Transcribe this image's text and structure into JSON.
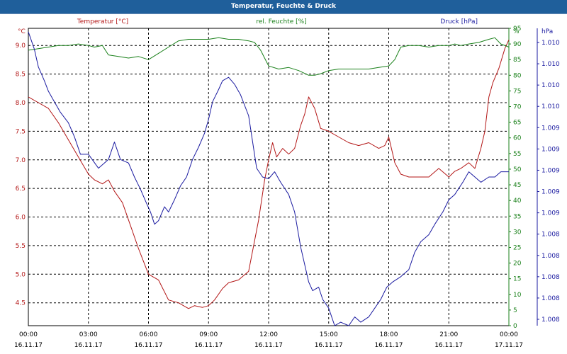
{
  "title": "Temperatur, Feuchte & Druck",
  "colors": {
    "temperature": "#b31616",
    "humidity": "#1a801a",
    "pressure": "#1a1aa0",
    "title_bar": "#1f5f9b",
    "grid": "#000000"
  },
  "chart_data": {
    "type": "line",
    "title": "Temperatur, Feuchte & Druck",
    "x_ticks": [
      {
        "time": "00:00",
        "date": "16.11.17"
      },
      {
        "time": "03:00",
        "date": "16.11.17"
      },
      {
        "time": "06:00",
        "date": "16.11.17"
      },
      {
        "time": "09:00",
        "date": "16.11.17"
      },
      {
        "time": "12:00",
        "date": "16.11.17"
      },
      {
        "time": "15:00",
        "date": "16.11.17"
      },
      {
        "time": "18:00",
        "date": "16.11.17"
      },
      {
        "time": "21:00",
        "date": "16.11.17"
      },
      {
        "time": "00:00",
        "date": "17.11.17"
      }
    ],
    "x_range_hours": [
      0,
      24
    ],
    "grid": true,
    "axes": {
      "temperature": {
        "label": "Temperatur [°C]",
        "unit": "°C",
        "range": [
          4.1,
          9.3
        ],
        "ticks": [
          "9.0",
          "8.5",
          "8.0",
          "7.5",
          "7.0",
          "6.5",
          "6.0",
          "5.5",
          "5.0",
          "4.5"
        ]
      },
      "humidity": {
        "label": "rel. Feuchte [%]",
        "unit": "%",
        "range": [
          0,
          95
        ],
        "ticks": [
          "95",
          "90",
          "85",
          "80",
          "75",
          "70",
          "65",
          "60",
          "55",
          "50",
          "45",
          "40",
          "35",
          "30",
          "25",
          "20",
          "15",
          "10",
          "5",
          "0"
        ]
      },
      "pressure": {
        "label": "Druck [hPa]",
        "unit": "hPa",
        "range": [
          1008.4,
          1010.1
        ],
        "ticks": [
          "1.010",
          "1.010",
          "1.010",
          "1.010",
          "1.009",
          "1.009",
          "1.009",
          "1.009",
          "1.009",
          "1.008",
          "1.008",
          "1.008",
          "1.008",
          "1.008"
        ]
      }
    },
    "series": [
      {
        "name": "Temperatur [°C]",
        "axis": "temperature",
        "x": [
          0,
          0.5,
          1,
          1.5,
          2,
          2.5,
          3,
          3.3,
          3.7,
          4,
          4.3,
          4.7,
          5,
          5.5,
          6,
          6.5,
          7,
          7.5,
          8,
          8.3,
          8.7,
          9,
          9.3,
          9.7,
          10,
          10.5,
          11,
          11.5,
          11.8,
          12,
          12.2,
          12.4,
          12.7,
          13,
          13.3,
          13.6,
          13.8,
          14,
          14.3,
          14.6,
          15,
          15.5,
          16,
          16.5,
          17,
          17.5,
          17.8,
          18,
          18.3,
          18.6,
          19,
          19.5,
          20,
          20.5,
          21,
          21.3,
          21.6,
          22,
          22.3,
          22.6,
          22.8,
          23,
          23.2,
          23.5,
          23.8,
          24
        ],
        "values": [
          8.1,
          8.0,
          7.9,
          7.65,
          7.35,
          7.05,
          6.75,
          6.65,
          6.58,
          6.65,
          6.45,
          6.25,
          5.95,
          5.45,
          5.0,
          4.9,
          4.55,
          4.5,
          4.4,
          4.45,
          4.42,
          4.45,
          4.55,
          4.75,
          4.85,
          4.9,
          5.05,
          5.95,
          6.65,
          7.0,
          7.3,
          7.05,
          7.2,
          7.1,
          7.2,
          7.6,
          7.8,
          8.1,
          7.9,
          7.55,
          7.5,
          7.4,
          7.3,
          7.25,
          7.3,
          7.2,
          7.25,
          7.4,
          6.95,
          6.75,
          6.7,
          6.7,
          6.7,
          6.85,
          6.7,
          6.8,
          6.85,
          6.95,
          6.85,
          7.2,
          7.5,
          8.1,
          8.35,
          8.6,
          8.95,
          9.1
        ]
      },
      {
        "name": "rel. Feuchte [%]",
        "axis": "humidity",
        "x": [
          0,
          0.5,
          1,
          1.5,
          2,
          2.5,
          3,
          3.3,
          3.7,
          4,
          4.5,
          5,
          5.5,
          6,
          6.5,
          7,
          7.5,
          8,
          8.5,
          9,
          9.5,
          10,
          10.5,
          11,
          11.3,
          11.6,
          12,
          12.5,
          13,
          13.5,
          14,
          14.3,
          14.6,
          15,
          15.5,
          16,
          16.5,
          17,
          17.5,
          18,
          18.3,
          18.6,
          19,
          19.5,
          20,
          20.5,
          21,
          21.3,
          21.6,
          22,
          22.5,
          23,
          23.3,
          23.6,
          24
        ],
        "values": [
          88,
          88.5,
          89,
          89.5,
          89.5,
          90,
          89.5,
          89,
          89.5,
          86.5,
          86,
          85.5,
          86,
          85,
          87,
          89,
          91,
          91.5,
          91.5,
          91.5,
          92,
          91.5,
          91.5,
          91,
          90.5,
          88,
          83,
          82,
          82.5,
          81.5,
          80,
          80,
          80.5,
          81.5,
          82,
          82,
          82,
          82,
          82.5,
          83,
          85,
          89,
          89.5,
          89.5,
          89,
          89.5,
          89.5,
          90,
          89.5,
          90,
          90.5,
          91.5,
          92,
          90,
          89
        ]
      },
      {
        "name": "Druck [hPa]",
        "axis": "pressure",
        "x": [
          0,
          0.3,
          0.5,
          0.8,
          1,
          1.3,
          1.6,
          2,
          2.3,
          2.6,
          3,
          3.5,
          4,
          4.3,
          4.6,
          5,
          5.3,
          5.6,
          5.9,
          6.1,
          6.3,
          6.5,
          6.8,
          7,
          7.3,
          7.6,
          7.9,
          8.2,
          8.5,
          8.8,
          9,
          9.2,
          9.5,
          9.7,
          10,
          10.3,
          10.6,
          11,
          11.4,
          11.7,
          12,
          12.3,
          12.6,
          13,
          13.3,
          13.6,
          14,
          14.2,
          14.5,
          14.7,
          15,
          15.3,
          15.6,
          16,
          16.3,
          16.6,
          17,
          17.3,
          17.6,
          17.9,
          18.2,
          18.6,
          19,
          19.3,
          19.6,
          20,
          20.3,
          20.7,
          21,
          21.3,
          21.7,
          22,
          22.3,
          22.6,
          23,
          23.3,
          23.6,
          24
        ],
        "values": [
          1010.08,
          1009.98,
          1009.88,
          1009.8,
          1009.74,
          1009.68,
          1009.62,
          1009.56,
          1009.48,
          1009.38,
          1009.38,
          1009.3,
          1009.35,
          1009.45,
          1009.35,
          1009.33,
          1009.25,
          1009.18,
          1009.1,
          1009.05,
          1008.98,
          1009.0,
          1009.08,
          1009.05,
          1009.12,
          1009.2,
          1009.25,
          1009.35,
          1009.42,
          1009.5,
          1009.58,
          1009.68,
          1009.75,
          1009.8,
          1009.82,
          1009.78,
          1009.72,
          1009.6,
          1009.3,
          1009.25,
          1009.24,
          1009.28,
          1009.22,
          1009.15,
          1009.05,
          1008.85,
          1008.65,
          1008.6,
          1008.62,
          1008.55,
          1008.5,
          1008.4,
          1008.42,
          1008.4,
          1008.45,
          1008.42,
          1008.45,
          1008.5,
          1008.55,
          1008.62,
          1008.65,
          1008.68,
          1008.72,
          1008.82,
          1008.88,
          1008.92,
          1008.98,
          1009.05,
          1009.12,
          1009.15,
          1009.22,
          1009.28,
          1009.25,
          1009.22,
          1009.25,
          1009.25,
          1009.28,
          1009.28
        ]
      }
    ]
  }
}
